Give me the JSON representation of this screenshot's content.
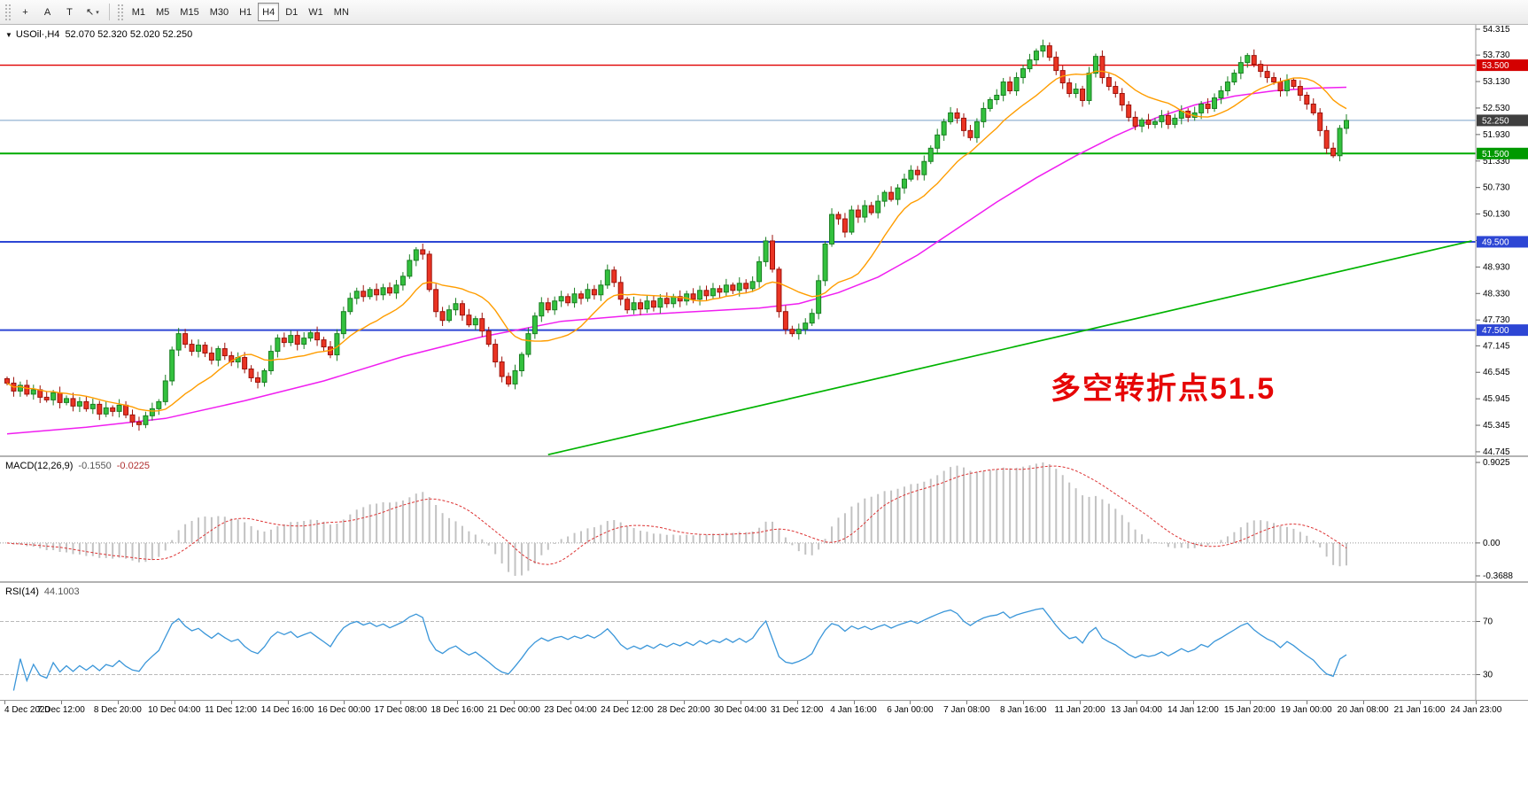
{
  "toolbar": {
    "tools": [
      {
        "name": "crosshair-button",
        "icon_name": "crosshair-icon",
        "glyph": "+"
      },
      {
        "name": "text-label-button",
        "icon_name": "letter-a-icon",
        "glyph": "A"
      },
      {
        "name": "text-tool-button",
        "icon_name": "text-tool-icon",
        "glyph": "T"
      },
      {
        "name": "objects-button",
        "icon_name": "draw-arrow-icon",
        "glyph": "↖",
        "caret": true
      }
    ],
    "timeframes": [
      "M1",
      "M5",
      "M15",
      "M30",
      "H1",
      "H4",
      "D1",
      "W1",
      "MN"
    ],
    "active_timeframe": "H4"
  },
  "chart": {
    "symbol_line": {
      "symbol": "USOil·,H4",
      "ohlc": "52.070 52.320 52.020 52.250"
    },
    "annotation": {
      "text": "多空转折点51.5",
      "color": "#e60606"
    },
    "price_axis": [
      "54.315",
      "53.730",
      "53.130",
      "52.530",
      "51.930",
      "51.330",
      "50.730",
      "50.130",
      "49.530",
      "48.930",
      "48.330",
      "47.730",
      "47.145",
      "46.545",
      "45.945",
      "45.345",
      "44.745"
    ],
    "price_tags": [
      {
        "value": "53.500",
        "color": "#d40000"
      },
      {
        "value": "52.250",
        "color": "#3f3f3f"
      },
      {
        "value": "51.500",
        "color": "#009900"
      },
      {
        "value": "49.500",
        "color": "#2d46d4"
      },
      {
        "value": "47.500",
        "color": "#2d46d4"
      }
    ],
    "hlines": [
      {
        "price": 53.5,
        "color": "#e00000",
        "width": 1.4
      },
      {
        "price": 52.25,
        "color": "#7aa0c8",
        "width": 1
      },
      {
        "price": 51.5,
        "color": "#00aa00",
        "width": 2
      },
      {
        "price": 49.5,
        "color": "#2d46d4",
        "width": 2
      },
      {
        "price": 47.5,
        "color": "#2d46d4",
        "width": 2
      }
    ],
    "time_axis": [
      "4 Dec 2020",
      "7 Dec 12:00",
      "8 Dec 20:00",
      "10 Dec 04:00",
      "11 Dec 12:00",
      "14 Dec 16:00",
      "16 Dec 00:00",
      "17 Dec 08:00",
      "18 Dec 16:00",
      "21 Dec 00:00",
      "23 Dec 04:00",
      "24 Dec 12:00",
      "28 Dec 20:00",
      "30 Dec 04:00",
      "31 Dec 12:00",
      "4 Jan 16:00",
      "6 Jan 00:00",
      "7 Jan 08:00",
      "8 Jan 16:00",
      "11 Jan 20:00",
      "13 Jan 04:00",
      "14 Jan 12:00",
      "15 Jan 20:00",
      "19 Jan 00:00",
      "20 Jan 08:00",
      "21 Jan 16:00",
      "24 Jan 23:00"
    ]
  },
  "chart_data": {
    "type": "candlestick",
    "symbol": "USOil",
    "timeframe": "H4",
    "price_range": [
      44.745,
      54.315
    ],
    "first_open": 46.4,
    "closes": [
      46.3,
      46.12,
      46.25,
      46.05,
      46.15,
      45.98,
      45.92,
      46.08,
      45.86,
      45.95,
      45.78,
      45.88,
      45.72,
      45.82,
      45.6,
      45.74,
      45.66,
      45.8,
      45.58,
      45.42,
      45.36,
      45.56,
      45.72,
      45.88,
      46.35,
      47.05,
      47.42,
      47.18,
      47.02,
      47.16,
      46.98,
      46.82,
      47.08,
      46.92,
      46.78,
      46.88,
      46.62,
      46.42,
      46.32,
      46.58,
      47.02,
      47.32,
      47.22,
      47.38,
      47.18,
      47.32,
      47.44,
      47.28,
      47.12,
      46.94,
      47.42,
      47.92,
      48.22,
      48.38,
      48.26,
      48.42,
      48.3,
      48.46,
      48.34,
      48.52,
      48.72,
      49.08,
      49.32,
      49.22,
      48.42,
      47.92,
      47.72,
      47.96,
      48.1,
      47.84,
      47.62,
      47.76,
      47.48,
      47.18,
      46.78,
      46.45,
      46.28,
      46.58,
      46.95,
      47.42,
      47.82,
      48.12,
      47.96,
      48.16,
      48.26,
      48.12,
      48.32,
      48.22,
      48.42,
      48.3,
      48.52,
      48.86,
      48.58,
      48.2,
      47.96,
      48.12,
      47.98,
      48.16,
      48.02,
      48.22,
      48.1,
      48.26,
      48.16,
      48.32,
      48.2,
      48.4,
      48.28,
      48.44,
      48.36,
      48.52,
      48.4,
      48.56,
      48.44,
      48.6,
      49.05,
      49.52,
      48.88,
      47.92,
      47.52,
      47.42,
      47.52,
      47.66,
      47.88,
      48.62,
      49.45,
      50.12,
      50.02,
      49.72,
      50.22,
      50.06,
      50.32,
      50.16,
      50.42,
      50.62,
      50.46,
      50.72,
      50.92,
      51.12,
      51.02,
      51.32,
      51.62,
      51.92,
      52.22,
      52.42,
      52.3,
      52.02,
      51.86,
      52.22,
      52.52,
      52.72,
      52.82,
      53.12,
      52.92,
      53.22,
      53.42,
      53.62,
      53.82,
      53.94,
      53.68,
      53.38,
      53.1,
      52.86,
      52.96,
      52.7,
      53.32,
      53.7,
      53.22,
      53.02,
      52.86,
      52.6,
      52.32,
      52.12,
      52.26,
      52.16,
      52.22,
      52.36,
      52.16,
      52.3,
      52.46,
      52.32,
      52.42,
      52.62,
      52.52,
      52.76,
      52.92,
      53.12,
      53.32,
      53.56,
      53.72,
      53.52,
      53.36,
      53.22,
      53.12,
      52.92,
      53.16,
      53.02,
      52.82,
      52.62,
      52.42,
      52.02,
      51.62,
      51.45,
      52.07,
      52.25
    ],
    "colors": {
      "up": "#33c13e",
      "up_edge": "#1a7e22",
      "down": "#ea3423",
      "down_edge": "#9c120b"
    },
    "ma_fast": {
      "period": 13,
      "color": "#ff9d00"
    },
    "ma_slow": {
      "color": "#f01ef0",
      "points": [
        [
          0,
          45.15
        ],
        [
          12,
          45.3
        ],
        [
          24,
          45.5
        ],
        [
          36,
          45.9
        ],
        [
          48,
          46.35
        ],
        [
          60,
          46.9
        ],
        [
          72,
          47.35
        ],
        [
          84,
          47.7
        ],
        [
          96,
          47.85
        ],
        [
          108,
          47.95
        ],
        [
          114,
          48.0
        ],
        [
          120,
          48.1
        ],
        [
          126,
          48.35
        ],
        [
          132,
          48.7
        ],
        [
          138,
          49.2
        ],
        [
          144,
          49.8
        ],
        [
          150,
          50.4
        ],
        [
          156,
          50.95
        ],
        [
          162,
          51.45
        ],
        [
          168,
          51.9
        ],
        [
          174,
          52.3
        ],
        [
          180,
          52.6
        ],
        [
          186,
          52.8
        ],
        [
          192,
          52.92
        ],
        [
          198,
          52.98
        ],
        [
          203,
          53.0
        ]
      ]
    },
    "trendline": {
      "color": "#00b300",
      "points": [
        [
          82,
          44.68
        ],
        [
          222,
          49.52
        ]
      ]
    },
    "macd": {
      "label": "MACD(12,26,9)",
      "value_main": "-0.1550",
      "value_signal": "-0.0225",
      "axis": [
        "0.9025",
        "0.00",
        "-0.3688"
      ],
      "range": [
        -0.3688,
        0.9025
      ],
      "histogram_color": "#c2c2c2",
      "signal_color": "#dd3434",
      "fast": 12,
      "slow": 26,
      "signal": 9
    },
    "rsi": {
      "label": "RSI(14)",
      "value": "44.1003",
      "period": 14,
      "levels": [
        "70",
        "30"
      ],
      "level_values": [
        70,
        30
      ],
      "color": "#3a96d9"
    }
  }
}
